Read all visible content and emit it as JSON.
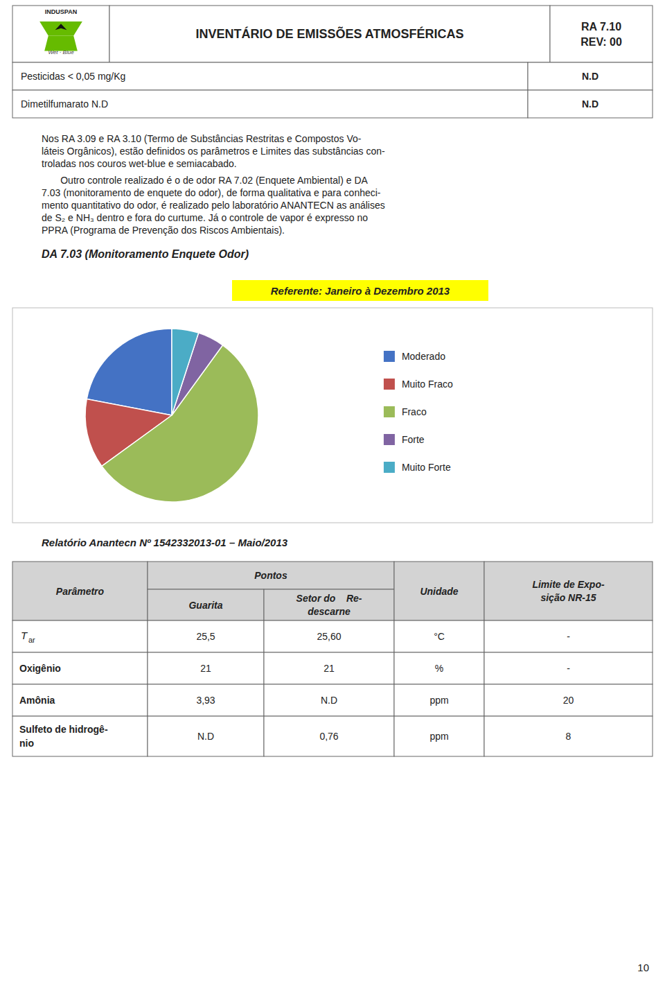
{
  "chart_data": {
    "type": "pie",
    "title": "DA 7.03 (Monitoramento Enquete Odor)",
    "subtitle": "Referente: Janeiro à Dezembro 2013",
    "categories": [
      "Moderado",
      "Muito Fraco",
      "Fraco",
      "Forte",
      "Muito Forte"
    ],
    "values": [
      22,
      13,
      55,
      5,
      5
    ],
    "colors": [
      "#4472C4",
      "#C0504D",
      "#9BBB59",
      "#8064A2",
      "#4BACC6"
    ],
    "legend": "right"
  },
  "page": {
    "logo": {
      "brand": "INDUSPAN",
      "tagline": "Wet · Blue"
    },
    "header_title": "INVENTÁRIO DE EMISSÕES ATMOSFÉRICAS",
    "header_ra": "RA 7.10\nREV: 00",
    "restrictions": [
      [
        "Pesticidas < 0,05 mg/Kg",
        "N.D"
      ],
      [
        "Dimetilfumarato N.D",
        "N.D"
      ]
    ],
    "paragraphs": [
      [
        "Nos RA 3.09 e RA 3.10 (Termo de Substâncias Restritas e Compostos Vo-",
        "láteis Orgânicos), estão definidos os parâmetros e Limites das substâncias con-",
        "troladas nos couros wet-blue e semiacabado."
      ],
      [
        "       Outro controle realizado é o de odor RA 7.02 (Enquete Ambiental) e DA",
        "7.03 (monitoramento de enquete do odor), de forma qualitativa e para conheci-",
        "mento quantitativo do odor, é realizado pelo laboratório ANANTECN as análises",
        "de S₂ e NH₃ dentro e fora do curtume. Já o controle de vapor é expresso no",
        "PPRA (Programa de Prevenção dos Riscos Ambientais)."
      ]
    ],
    "report_title": "Relatório Anantecn Nº 1542332013-01 – Maio/2013",
    "table": {
      "headers": [
        "Parâmetro",
        "Pontos",
        "Guarita",
        "Setor do    Re-\ndescarne",
        "Unidade",
        "Limite de Expo-\nsição NR-15"
      ],
      "rows": [
        {
          "label": "T",
          "label_sub": "ar",
          "cells": [
            "25,5",
            "25,60",
            "°C",
            "-"
          ]
        },
        {
          "label": "Oxigênio",
          "cells": [
            "21",
            "21",
            "%",
            "-"
          ]
        },
        {
          "label": "Amônia",
          "cells": [
            "3,93",
            "N.D",
            "ppm",
            "20"
          ]
        },
        {
          "label": "Sulfeto de hidrogê-\nnio",
          "cells": [
            "N.D",
            "0,76",
            "ppm",
            "8"
          ]
        }
      ]
    },
    "page_number": "10"
  }
}
